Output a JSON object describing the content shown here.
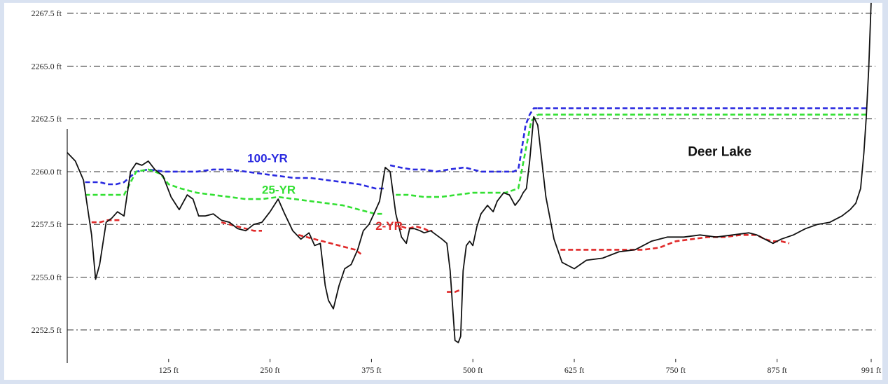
{
  "chart_data": {
    "type": "line",
    "title": "",
    "xlabel": "",
    "ylabel": "",
    "xlim": [
      0,
      991
    ],
    "ylim": [
      2251,
      2268
    ],
    "x_ticks": [
      {
        "value": 125,
        "label": "125 ft"
      },
      {
        "value": 250,
        "label": "250 ft"
      },
      {
        "value": 375,
        "label": "375 ft"
      },
      {
        "value": 500,
        "label": "500 ft"
      },
      {
        "value": 625,
        "label": "625 ft"
      },
      {
        "value": 750,
        "label": "750 ft"
      },
      {
        "value": 875,
        "label": "875 ft"
      },
      {
        "value": 991,
        "label": "991 ft"
      }
    ],
    "y_ticks": [
      {
        "value": 2252.5,
        "label": "2252.5 ft"
      },
      {
        "value": 2255.0,
        "label": "2255.0 ft"
      },
      {
        "value": 2257.5,
        "label": "2257.5 ft"
      },
      {
        "value": 2260.0,
        "label": "2260.0 ft"
      },
      {
        "value": 2262.5,
        "label": "2262.5 ft"
      },
      {
        "value": 2265.0,
        "label": "2265.0 ft"
      },
      {
        "value": 2267.5,
        "label": "2267.5 ft"
      }
    ],
    "grid": true,
    "colors": {
      "ground": "#111111",
      "yr100": "#2a2ae0",
      "yr25": "#33e033",
      "yr2": "#e02a2a",
      "grid": "#333333"
    },
    "ground": {
      "x": [
        0,
        10,
        20,
        30,
        35,
        40,
        48,
        55,
        62,
        70,
        78,
        85,
        92,
        100,
        108,
        118,
        128,
        138,
        148,
        155,
        162,
        170,
        180,
        190,
        200,
        210,
        220,
        230,
        240,
        250,
        260,
        268,
        278,
        288,
        298,
        305,
        312,
        318,
        322,
        328,
        335,
        342,
        350,
        358,
        365,
        372,
        378,
        385,
        392,
        398,
        405,
        412,
        418,
        422,
        428,
        435,
        440,
        448,
        455,
        462,
        468,
        472,
        475,
        478,
        482,
        485,
        488,
        492,
        496,
        500,
        505,
        510,
        518,
        525,
        530,
        538,
        545,
        552,
        558,
        562,
        566,
        570,
        575,
        580,
        585,
        590,
        600,
        610,
        620,
        625,
        640,
        660,
        680,
        700,
        720,
        740,
        760,
        780,
        800,
        820,
        840,
        850,
        860,
        870,
        880,
        895,
        910,
        925,
        940,
        955,
        965,
        972,
        978,
        982,
        985,
        988,
        991
      ],
      "y": [
        2260.9,
        2260.5,
        2259.6,
        2257.0,
        2254.9,
        2255.6,
        2257.6,
        2257.8,
        2258.1,
        2257.9,
        2260.0,
        2260.4,
        2260.3,
        2260.5,
        2260.1,
        2259.8,
        2258.8,
        2258.2,
        2258.9,
        2258.7,
        2257.9,
        2257.9,
        2258.0,
        2257.7,
        2257.6,
        2257.3,
        2257.2,
        2257.5,
        2257.6,
        2258.1,
        2258.7,
        2258.0,
        2257.2,
        2256.8,
        2257.1,
        2256.5,
        2256.6,
        2254.6,
        2253.9,
        2253.5,
        2254.6,
        2255.4,
        2255.6,
        2256.3,
        2257.2,
        2257.5,
        2258.0,
        2258.6,
        2260.2,
        2260.0,
        2258.0,
        2256.9,
        2256.6,
        2257.3,
        2257.3,
        2257.2,
        2257.1,
        2257.2,
        2257.0,
        2256.8,
        2256.6,
        2255.3,
        2253.6,
        2252.0,
        2251.9,
        2252.2,
        2255.3,
        2256.5,
        2256.7,
        2256.5,
        2257.4,
        2258.0,
        2258.4,
        2258.1,
        2258.6,
        2259.0,
        2258.9,
        2258.4,
        2258.7,
        2259.0,
        2259.2,
        2260.5,
        2262.6,
        2262.2,
        2260.5,
        2258.8,
        2256.8,
        2255.7,
        2255.5,
        2255.4,
        2255.8,
        2255.9,
        2256.2,
        2256.3,
        2256.7,
        2256.9,
        2256.9,
        2257.0,
        2256.9,
        2257.0,
        2257.1,
        2257.0,
        2256.8,
        2256.6,
        2256.8,
        2257.0,
        2257.3,
        2257.5,
        2257.6,
        2257.9,
        2258.2,
        2258.5,
        2259.2,
        2260.9,
        2262.6,
        2264.9,
        2268.1
      ]
    },
    "series": [
      {
        "name": "100-YR",
        "segments": [
          {
            "x": [
              22,
              30,
              40,
              50,
              60,
              70,
              85,
              100,
              120,
              140,
              160,
              180,
              200,
              220,
              240,
              260,
              280,
              300,
              320,
              340,
              360,
              380,
              390
            ],
            "y": [
              2259.5,
              2259.5,
              2259.5,
              2259.4,
              2259.4,
              2259.5,
              2260.0,
              2260.1,
              2260.0,
              2260.0,
              2260.0,
              2260.1,
              2260.1,
              2260.0,
              2259.9,
              2259.8,
              2259.7,
              2259.7,
              2259.6,
              2259.5,
              2259.4,
              2259.2,
              2259.2
            ]
          },
          {
            "x": [
              398,
              410,
              425,
              440,
              455,
              470,
              490,
              510,
              530,
              550,
              556,
              560,
              565,
              570,
              575,
              580
            ],
            "y": [
              2260.3,
              2260.2,
              2260.1,
              2260.1,
              2260.0,
              2260.1,
              2260.2,
              2260.0,
              2260.0,
              2260.0,
              2260.1,
              2261.0,
              2262.2,
              2262.7,
              2263.0,
              2263.0
            ]
          },
          {
            "x": [
              580,
              650,
              720,
              800,
              880,
              950,
              987
            ],
            "y": [
              2263.0,
              2263.0,
              2263.0,
              2263.0,
              2263.0,
              2263.0,
              2263.0
            ]
          }
        ]
      },
      {
        "name": "25-YR",
        "segments": [
          {
            "x": [
              22,
              40,
              55,
              70,
              85,
              100,
              115,
              125,
              140,
              160,
              180,
              200,
              220,
              240,
              260,
              280,
              300,
              320,
              340,
              360,
              380,
              388
            ],
            "y": [
              2258.9,
              2258.9,
              2258.9,
              2258.9,
              2260.0,
              2260.1,
              2259.9,
              2259.4,
              2259.2,
              2259.0,
              2258.9,
              2258.8,
              2258.7,
              2258.7,
              2258.8,
              2258.7,
              2258.6,
              2258.5,
              2258.4,
              2258.2,
              2258.0,
              2258.0
            ]
          },
          {
            "x": [
              405,
              420,
              440,
              460,
              480,
              500,
              520,
              540,
              556,
              565,
              572,
              580
            ],
            "y": [
              2258.9,
              2258.9,
              2258.8,
              2258.8,
              2258.9,
              2259.0,
              2259.0,
              2259.0,
              2259.2,
              2261.0,
              2262.4,
              2262.7
            ]
          },
          {
            "x": [
              580,
              650,
              720,
              800,
              880,
              950,
              987
            ],
            "y": [
              2262.7,
              2262.7,
              2262.7,
              2262.7,
              2262.7,
              2262.7,
              2262.7
            ]
          }
        ]
      },
      {
        "name": "2-YR",
        "segments": [
          {
            "x": [
              30,
              40,
              50,
              58,
              65
            ],
            "y": [
              2257.6,
              2257.6,
              2257.7,
              2257.7,
              2257.7
            ]
          },
          {
            "x": [
              190,
              200,
              210,
              220,
              230,
              240
            ],
            "y": [
              2257.6,
              2257.5,
              2257.4,
              2257.3,
              2257.2,
              2257.2
            ]
          },
          {
            "x": [
              285,
              295,
              305,
              315,
              325,
              335,
              345,
              355,
              362
            ],
            "y": [
              2257.0,
              2256.9,
              2256.8,
              2256.7,
              2256.6,
              2256.5,
              2256.4,
              2256.3,
              2256.1
            ]
          },
          {
            "x": [
              412,
              420,
              430,
              440,
              445,
              450
            ],
            "y": [
              2257.4,
              2257.3,
              2257.4,
              2257.3,
              2257.2,
              2257.2
            ]
          },
          {
            "x": [
              468,
              478,
              485
            ],
            "y": [
              2254.3,
              2254.3,
              2254.4
            ]
          },
          {
            "x": [
              608,
              630,
              650,
              670,
              690,
              710,
              730,
              750,
              770,
              790,
              810,
              830,
              850,
              860,
              870,
              880,
              890
            ],
            "y": [
              2256.3,
              2256.3,
              2256.3,
              2256.3,
              2256.3,
              2256.3,
              2256.4,
              2256.7,
              2256.8,
              2256.9,
              2256.9,
              2257.0,
              2257.0,
              2256.8,
              2256.7,
              2256.7,
              2256.6
            ]
          }
        ]
      }
    ],
    "series_labels": [
      {
        "text": "100-YR",
        "x": 222,
        "y": 2260.45,
        "series": "yr100"
      },
      {
        "text": "25-YR",
        "x": 240,
        "y": 2258.95,
        "series": "yr25"
      },
      {
        "text": "2-YR",
        "x": 380,
        "y": 2257.25,
        "series": "yr2"
      }
    ],
    "annotations": [
      {
        "text": "Deer Lake",
        "x": 765,
        "y": 2260.75
      }
    ]
  }
}
